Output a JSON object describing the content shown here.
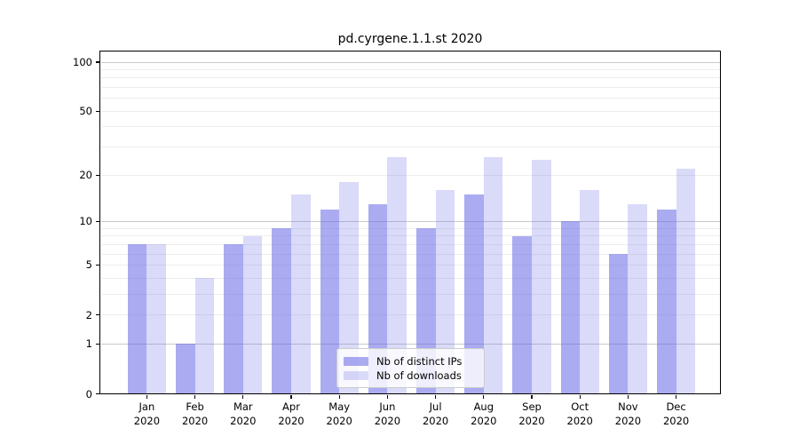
{
  "title": "pd.cyrgene.1.1.st 2020",
  "chart_data": {
    "type": "bar",
    "title": "pd.cyrgene.1.1.st 2020",
    "categories": [
      "Jan 2020",
      "Feb 2020",
      "Mar 2020",
      "Apr 2020",
      "May 2020",
      "Jun 2020",
      "Jul 2020",
      "Aug 2020",
      "Sep 2020",
      "Oct 2020",
      "Nov 2020",
      "Dec 2020"
    ],
    "series": [
      {
        "name": "Nb of distinct IPs",
        "color": "#6666e6",
        "alpha": 0.55,
        "effective_color": "#aaaaef",
        "values": [
          7,
          1,
          7,
          9,
          12,
          13,
          9,
          15,
          8,
          10,
          6,
          12
        ]
      },
      {
        "name": "Nb of downloads",
        "color": "#6666e6",
        "alpha": 0.24,
        "effective_color": "#dadaf8",
        "values": [
          7,
          4,
          8,
          15,
          18,
          26,
          16,
          26,
          25,
          16,
          13,
          22
        ]
      }
    ],
    "yscale": "log1p",
    "ylim": [
      0,
      115
    ],
    "yticks": [
      0,
      1,
      2,
      5,
      10,
      20,
      50,
      100
    ],
    "yticks_major_grid": [
      1,
      10,
      100
    ],
    "grid": true,
    "legend_position": "lower center",
    "xlabel": "",
    "ylabel": ""
  },
  "colors": {
    "background": "#ffffff",
    "bar_base": "#6666e6",
    "major_grid": "#c9c9c9",
    "minor_grid": "#ededed",
    "axis": "#000000",
    "text": "#000000",
    "legend_border": "#cccccc"
  }
}
